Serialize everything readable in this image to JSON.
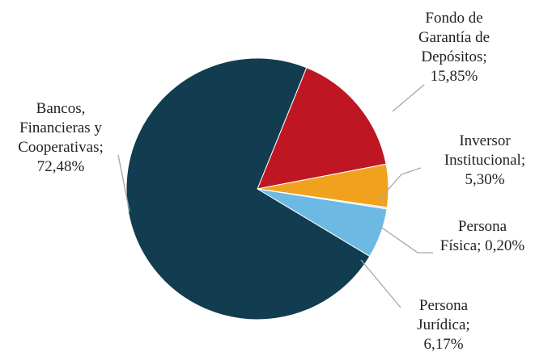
{
  "chart_data": {
    "type": "pie",
    "title": "",
    "start_angle_deg": 68,
    "direction": "clockwise",
    "slices": [
      {
        "key": "fgd",
        "label_lines": [
          "Fondo de",
          "Garantía de",
          "Depósitos;",
          "15,85%"
        ],
        "value": 15.85,
        "color": "#be1622"
      },
      {
        "key": "inst",
        "label_lines": [
          "Inversor",
          "Institucional;",
          "5,30%"
        ],
        "value": 5.3,
        "color": "#f0a21f"
      },
      {
        "key": "fisica",
        "label_lines": [
          "Persona",
          "Física; 0,20%"
        ],
        "value": 0.2,
        "color": "#d9d9d9"
      },
      {
        "key": "juridica",
        "label_lines": [
          "Persona",
          "Jurídica;",
          "6,17%"
        ],
        "value": 6.17,
        "color": "#6cb9e4"
      },
      {
        "key": "bancos",
        "label_lines": [
          "Bancos,",
          "Financieras y",
          "Cooperativas;",
          "72,48%"
        ],
        "value": 72.48,
        "color": "#123c50"
      }
    ]
  }
}
